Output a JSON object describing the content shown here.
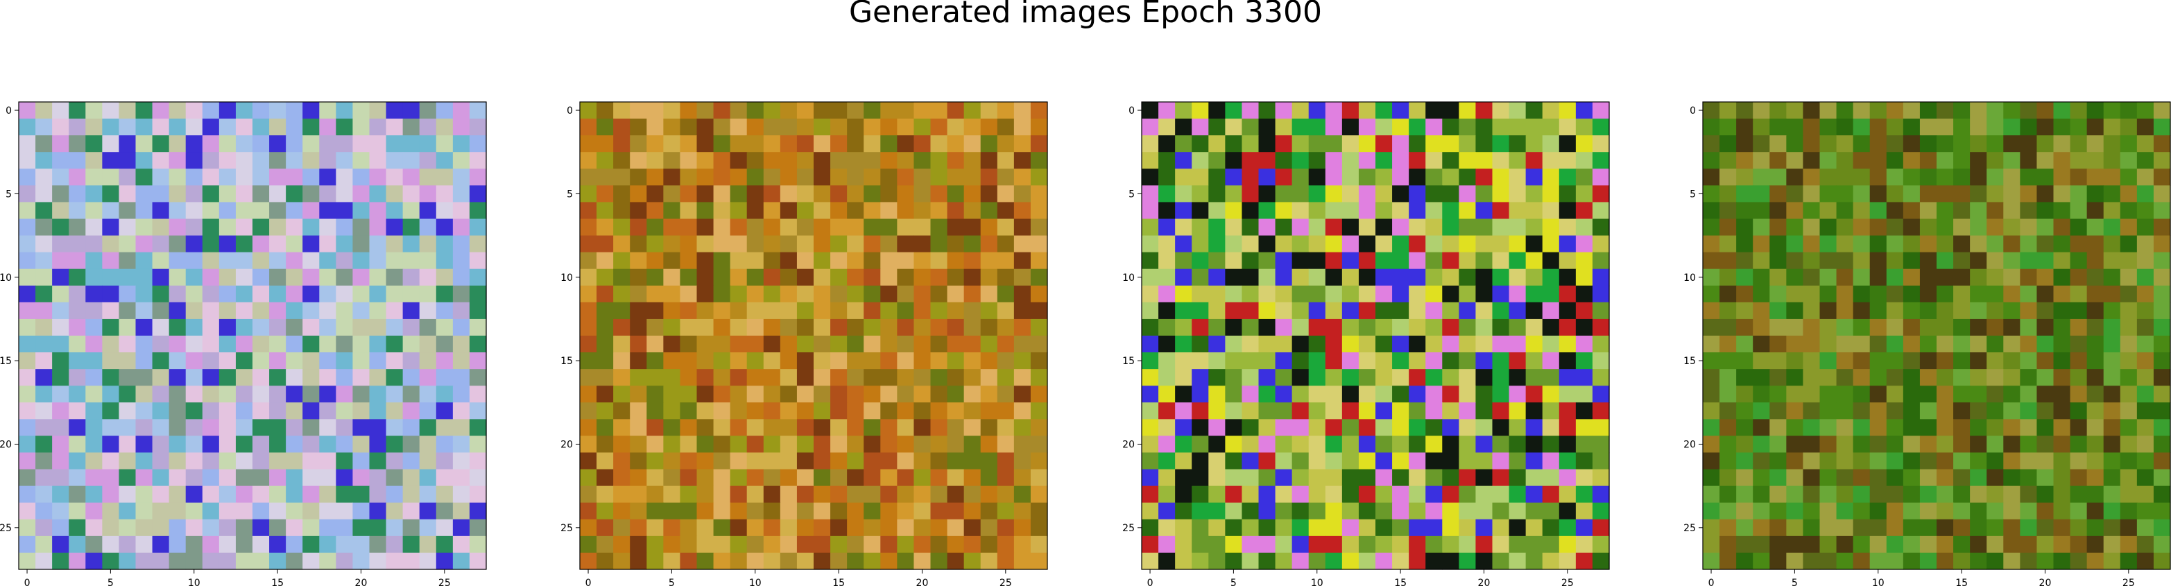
{
  "figure": {
    "title": "Generated images Epoch 3300"
  },
  "chart_data": [
    {
      "type": "heatmap",
      "grid": [
        28,
        28
      ],
      "palette": [
        "#7f9a8a",
        "#c4c7a4",
        "#d8d2e6",
        "#b9a8d6",
        "#a7c4ea",
        "#6fb8d2",
        "#e4c4e0",
        "#c7d9b0",
        "#2a8c5a",
        "#3b2fd4",
        "#d49ae0",
        "#9ab4ee"
      ],
      "xticks": [
        "0",
        "5",
        "10",
        "15",
        "20",
        "25"
      ],
      "yticks": [
        "0",
        "5",
        "10",
        "15",
        "20",
        "25"
      ],
      "xlim": [
        -0.5,
        27.5
      ],
      "ylim": [
        27.5,
        -0.5
      ]
    },
    {
      "type": "heatmap",
      "grid": [
        28,
        28
      ],
      "palette": [
        "#b88a1c",
        "#c47a12",
        "#a88a2a",
        "#d49a2c",
        "#9a9a18",
        "#c46a1a",
        "#8a6a10",
        "#d2b04a",
        "#6a7a14",
        "#b0501a",
        "#e0b060",
        "#7a3a10"
      ],
      "xticks": [
        "0",
        "5",
        "10",
        "15",
        "20",
        "25"
      ],
      "yticks": [
        "0",
        "5",
        "10",
        "15",
        "20",
        "25"
      ],
      "xlim": [
        -0.5,
        27.5
      ],
      "ylim": [
        27.5,
        -0.5
      ]
    },
    {
      "type": "heatmap",
      "grid": [
        28,
        28
      ],
      "palette": [
        "#9ab83a",
        "#c4c44a",
        "#6a9a2a",
        "#d8d070",
        "#2a6a10",
        "#e0e020",
        "#3a30e0",
        "#c42020",
        "#b0d070",
        "#1aa83a",
        "#e080e0",
        "#101810"
      ],
      "xticks": [
        "0",
        "5",
        "10",
        "15",
        "20",
        "25"
      ],
      "yticks": [
        "0",
        "5",
        "10",
        "15",
        "20",
        "25"
      ],
      "xlim": [
        -0.5,
        27.5
      ],
      "ylim": [
        27.5,
        -0.5
      ]
    },
    {
      "type": "heatmap",
      "grid": [
        28,
        28
      ],
      "palette": [
        "#6a8a1a",
        "#4a8a14",
        "#8a9a2a",
        "#3a7a10",
        "#9a7a20",
        "#5a6a18",
        "#2a6a0c",
        "#a0a040",
        "#7a5a14",
        "#3aa030",
        "#6aa838",
        "#4a3a10"
      ],
      "xticks": [
        "0",
        "5",
        "10",
        "15",
        "20",
        "25"
      ],
      "yticks": [
        "0",
        "5",
        "10",
        "15",
        "20",
        "25"
      ],
      "xlim": [
        -0.5,
        27.5
      ],
      "ylim": [
        27.5,
        -0.5
      ]
    }
  ]
}
